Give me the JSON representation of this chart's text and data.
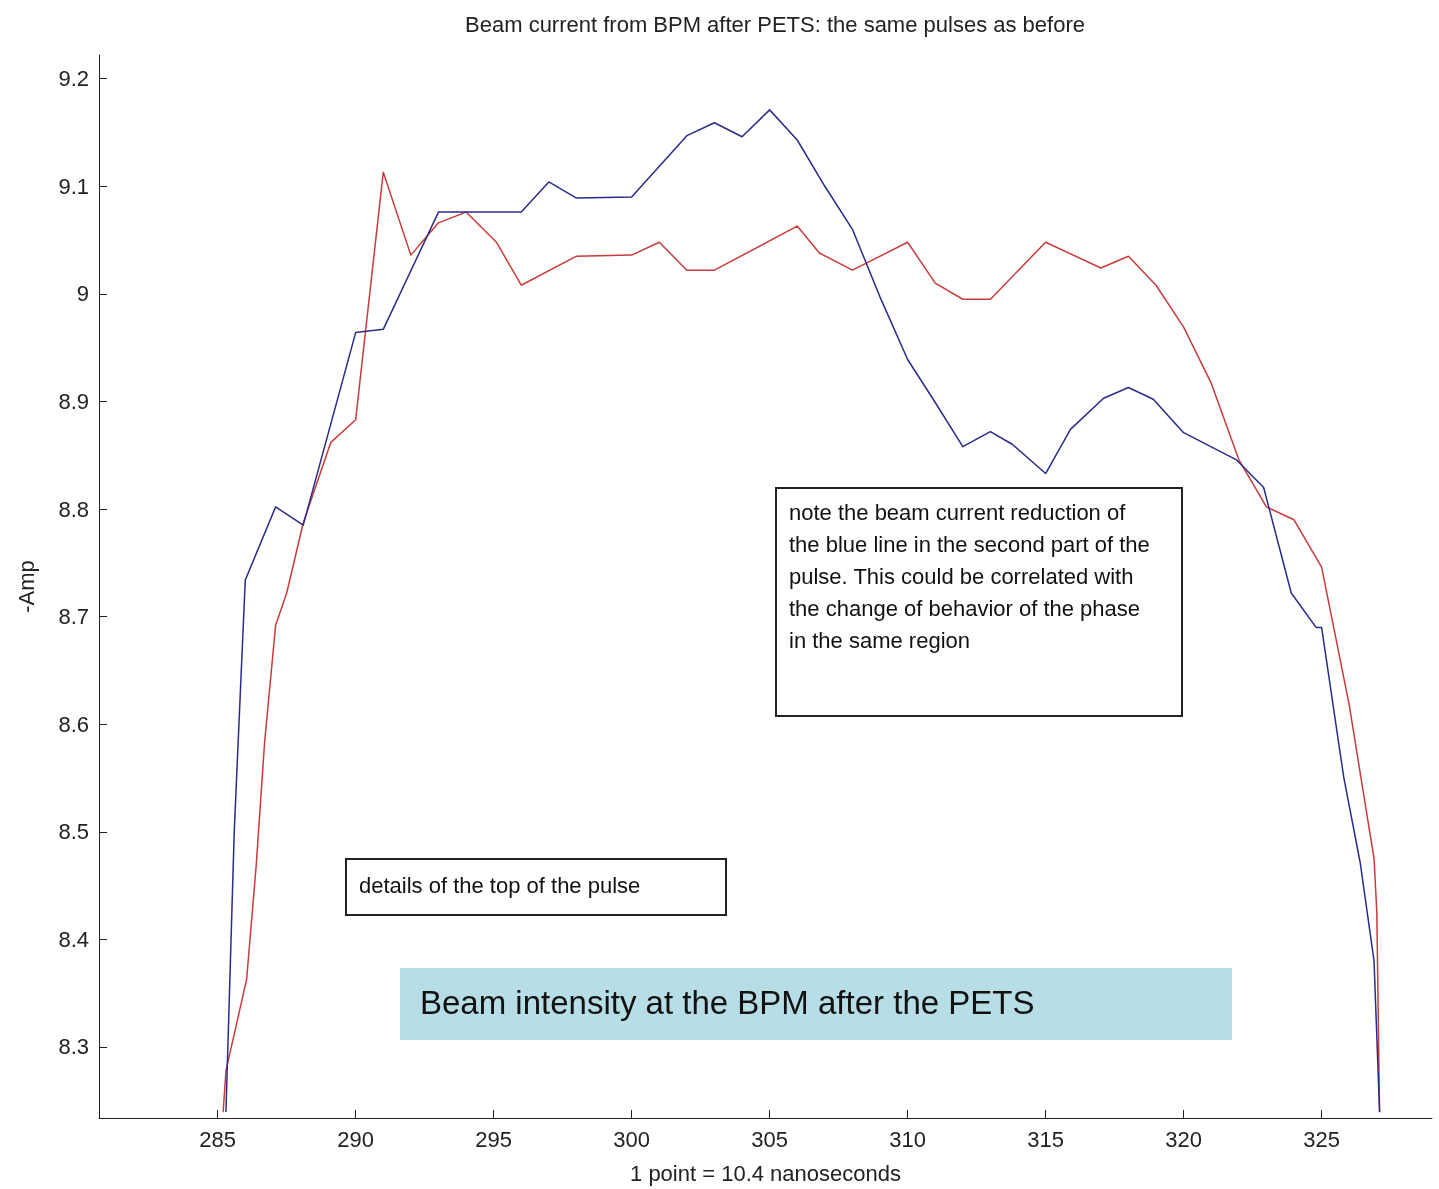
{
  "chart_data": {
    "type": "line",
    "title": "Beam current from BPM after PETS: the same pulses as before",
    "xlabel": "1 point = 10.4 nanoseconds",
    "ylabel": "-Amp",
    "xlim": [
      280.7,
      329
    ],
    "xticks": [
      285,
      290,
      295,
      300,
      305,
      310,
      315,
      320,
      325
    ],
    "ylim": [
      8.234,
      9.222
    ],
    "yticks": [
      8.3,
      8.4,
      8.5,
      8.6,
      8.7,
      8.8,
      8.9,
      9,
      9.1,
      9.2
    ],
    "grid": false,
    "marker": "none",
    "line_style": "solid",
    "annotations": [
      "note the beam current reduction of the blue line in the second part of the pulse. This could be correlated with the change of behavior of the phase in the same region",
      "details of the top of the pulse",
      "Beam intensity at the BPM after the PETS"
    ],
    "series": [
      {
        "color": "#c83c3c",
        "x": [
          285.2,
          285.3,
          286.05,
          286.4,
          286.7,
          287.1,
          287.5,
          288.1,
          289.1,
          290,
          291,
          292,
          293,
          294,
          295.1,
          296,
          298,
          300,
          301,
          302,
          303,
          306,
          306.8,
          308,
          310,
          311,
          312,
          313,
          315,
          317,
          318,
          319,
          320,
          321,
          322,
          323,
          324,
          325,
          326,
          326.9,
          327,
          327.1
        ],
        "values": [
          8.24,
          8.278,
          8.363,
          8.47,
          8.583,
          8.692,
          8.722,
          8.787,
          8.862,
          8.883,
          9.113,
          9.036,
          9.066,
          9.076,
          9.048,
          9.008,
          9.035,
          9.036,
          9.048,
          9.022,
          9.022,
          9.063,
          9.038,
          9.022,
          9.048,
          9.01,
          8.995,
          8.995,
          9.048,
          9.024,
          9.035,
          9.008,
          8.969,
          8.917,
          8.846,
          8.802,
          8.79,
          8.746,
          8.618,
          8.475,
          8.426,
          8.24
        ]
      },
      {
        "color": "#2b2b8a",
        "x": [
          285.3,
          285.6,
          286,
          287.1,
          288.1,
          290,
          291,
          293,
          296,
          297,
          298,
          300,
          302,
          303,
          304,
          305,
          306,
          307,
          308,
          309,
          310,
          311,
          312,
          313,
          313.8,
          315,
          315.9,
          317.1,
          318,
          318.9,
          320,
          321.9,
          322.9,
          323.9,
          324.8,
          325,
          325.8,
          326.4,
          326.9,
          327.1
        ],
        "values": [
          8.24,
          8.5,
          8.734,
          8.802,
          8.785,
          8.964,
          8.967,
          9.076,
          9.076,
          9.104,
          9.089,
          9.09,
          9.147,
          9.159,
          9.146,
          9.171,
          9.143,
          9.1,
          9.06,
          8.997,
          8.939,
          8.899,
          8.858,
          8.872,
          8.86,
          8.833,
          8.874,
          8.903,
          8.913,
          8.902,
          8.871,
          8.846,
          8.82,
          8.722,
          8.69,
          8.69,
          8.551,
          8.471,
          8.38,
          8.24
        ]
      }
    ]
  }
}
